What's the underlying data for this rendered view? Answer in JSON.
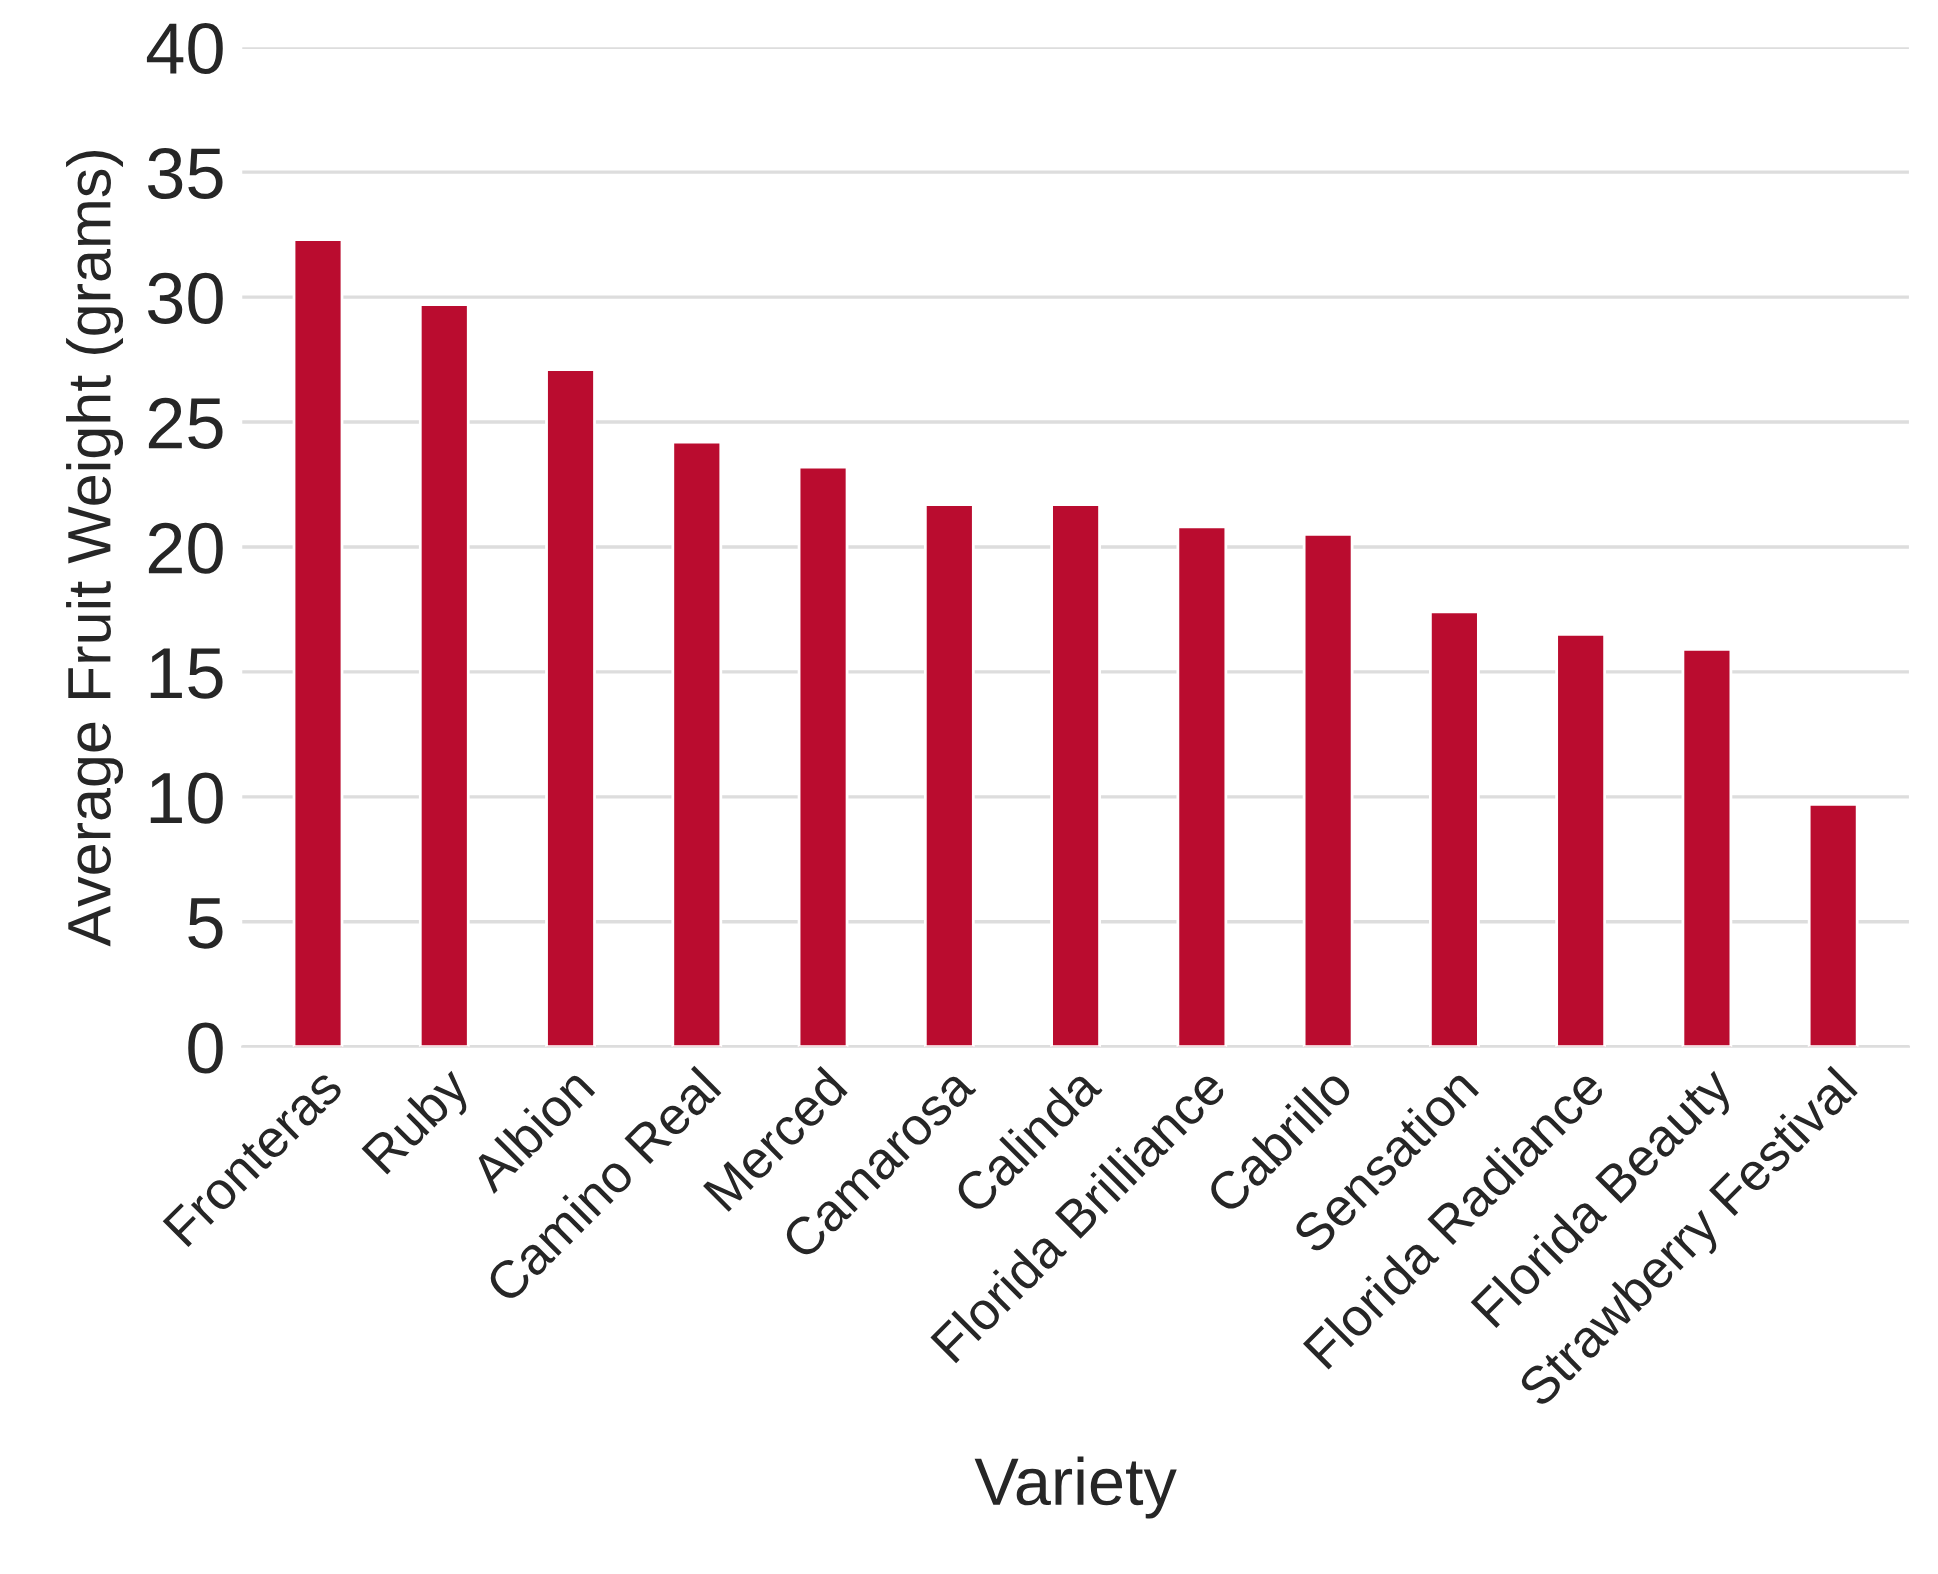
{
  "chart_data": {
    "type": "bar",
    "xlabel": "Variety",
    "ylabel": "Average Fruit Weight (grams)",
    "categories": [
      "Fronteras",
      "Ruby",
      "Albion",
      "Camino Real",
      "Merced",
      "Camarosa",
      "Calinda",
      "Florida Brilliance",
      "Cabrillo",
      "Sensation",
      "Florida Radiance",
      "Florida Beauty",
      "Strawberry Festival"
    ],
    "values": [
      32.3,
      29.7,
      27.1,
      24.2,
      23.2,
      21.7,
      21.7,
      20.8,
      20.5,
      17.4,
      16.5,
      15.9,
      9.7
    ],
    "color": "#ba0c2f",
    "ylim": [
      0,
      40
    ],
    "yticks": [
      0,
      5,
      10,
      15,
      20,
      25,
      30,
      35,
      40
    ],
    "grid": "y"
  }
}
